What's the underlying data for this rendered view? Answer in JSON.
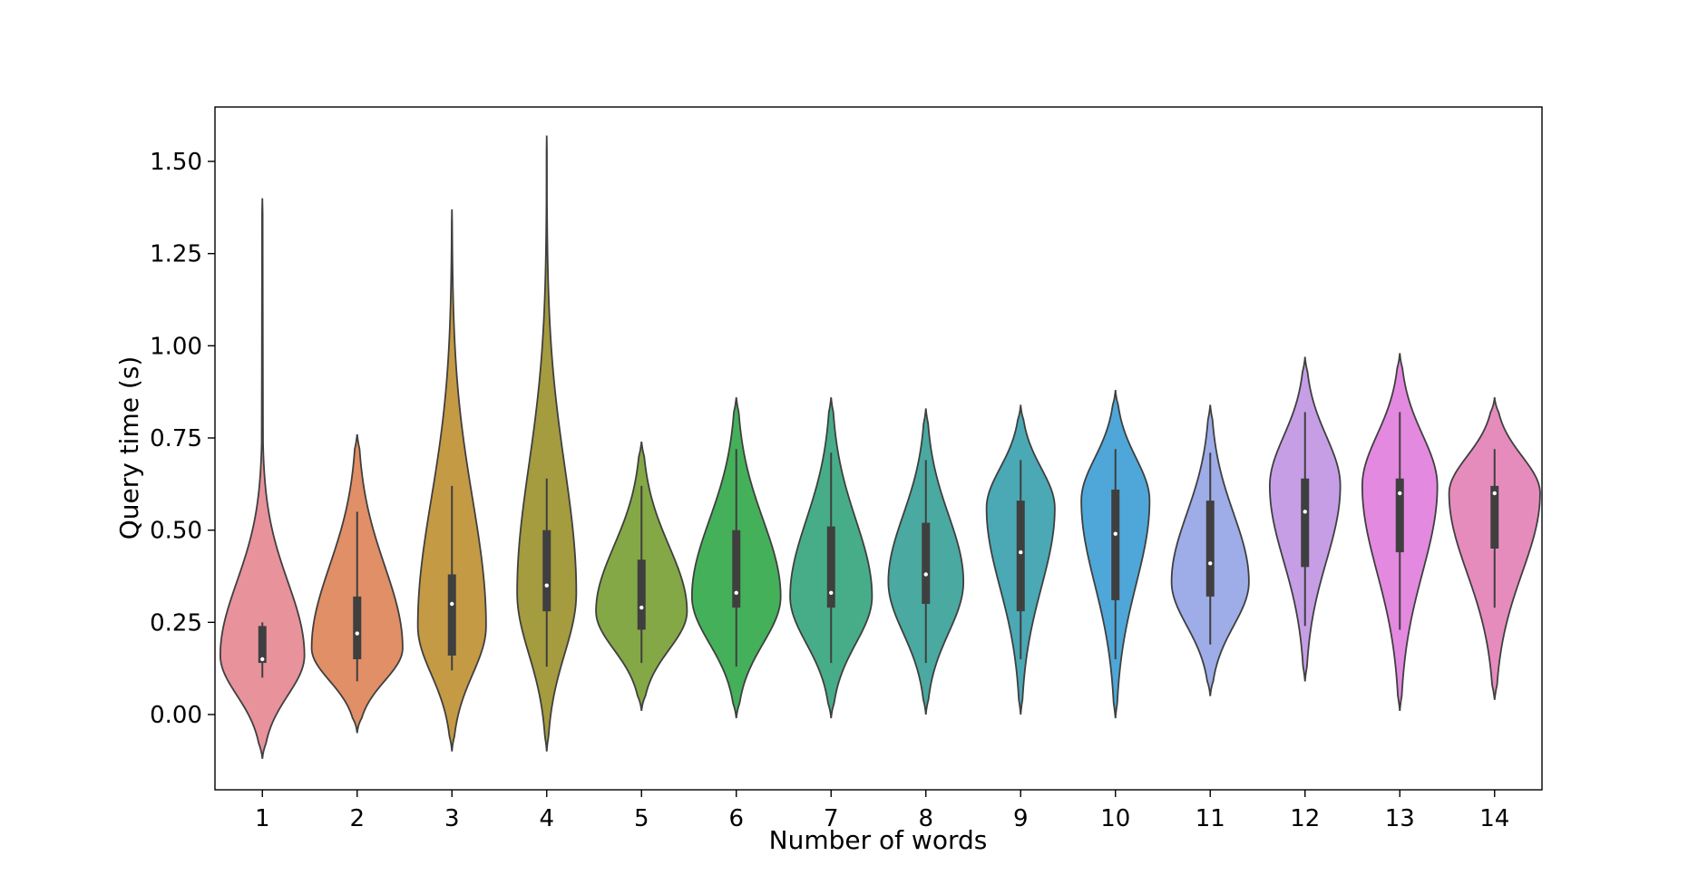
{
  "chart_data": {
    "type": "violin",
    "xlabel": "Number of words",
    "ylabel": "Query time (s)",
    "categories": [
      "1",
      "2",
      "3",
      "4",
      "5",
      "6",
      "7",
      "8",
      "9",
      "10",
      "11",
      "12",
      "13",
      "14"
    ],
    "yticks": [
      "0.00",
      "0.25",
      "0.50",
      "0.75",
      "1.00",
      "1.25",
      "1.50"
    ],
    "ylim": [
      -0.2,
      1.65
    ],
    "grid": false,
    "legend": "none",
    "colors": [
      "#e8929c",
      "#e08f66",
      "#c59a45",
      "#a59b3f",
      "#84a846",
      "#45b05a",
      "#47ad89",
      "#4aa9a0",
      "#4aa9b5",
      "#4ea7d8",
      "#9eace8",
      "#c69ee6",
      "#e489e0",
      "#e68cbd"
    ],
    "violins": [
      {
        "category": "1",
        "min": -0.12,
        "max": 1.4,
        "q1": 0.14,
        "median": 0.15,
        "q3": 0.24,
        "whisker_low": 0.1,
        "whisker_high": 0.25,
        "peak": 0.16,
        "peak_width": 0.37
      },
      {
        "category": "2",
        "min": -0.05,
        "max": 0.76,
        "q1": 0.15,
        "median": 0.22,
        "q3": 0.32,
        "whisker_low": 0.09,
        "whisker_high": 0.55,
        "peak": 0.18,
        "peak_width": 0.4
      },
      {
        "category": "3",
        "min": -0.1,
        "max": 1.37,
        "q1": 0.16,
        "median": 0.3,
        "q3": 0.38,
        "whisker_low": 0.12,
        "whisker_high": 0.62,
        "peak": 0.24,
        "peak_width": 0.3
      },
      {
        "category": "4",
        "min": -0.1,
        "max": 1.57,
        "q1": 0.28,
        "median": 0.35,
        "q3": 0.5,
        "whisker_low": 0.13,
        "whisker_high": 0.64,
        "peak": 0.33,
        "peak_width": 0.26
      },
      {
        "category": "5",
        "min": 0.01,
        "max": 0.74,
        "q1": 0.23,
        "median": 0.29,
        "q3": 0.42,
        "whisker_low": 0.14,
        "whisker_high": 0.62,
        "peak": 0.28,
        "peak_width": 0.4
      },
      {
        "category": "6",
        "min": -0.01,
        "max": 0.86,
        "q1": 0.29,
        "median": 0.33,
        "q3": 0.5,
        "whisker_low": 0.13,
        "whisker_high": 0.72,
        "peak": 0.32,
        "peak_width": 0.39
      },
      {
        "category": "7",
        "min": -0.01,
        "max": 0.86,
        "q1": 0.29,
        "median": 0.33,
        "q3": 0.51,
        "whisker_low": 0.14,
        "whisker_high": 0.71,
        "peak": 0.32,
        "peak_width": 0.36
      },
      {
        "category": "8",
        "min": 0.0,
        "max": 0.83,
        "q1": 0.3,
        "median": 0.38,
        "q3": 0.52,
        "whisker_low": 0.14,
        "whisker_high": 0.69,
        "peak": 0.36,
        "peak_width": 0.33
      },
      {
        "category": "9",
        "min": 0.0,
        "max": 0.84,
        "q1": 0.28,
        "median": 0.44,
        "q3": 0.58,
        "whisker_low": 0.15,
        "whisker_high": 0.69,
        "peak": 0.56,
        "peak_width": 0.3
      },
      {
        "category": "10",
        "min": -0.01,
        "max": 0.88,
        "q1": 0.31,
        "median": 0.49,
        "q3": 0.61,
        "whisker_low": 0.15,
        "whisker_high": 0.72,
        "peak": 0.58,
        "peak_width": 0.3
      },
      {
        "category": "11",
        "min": 0.05,
        "max": 0.84,
        "q1": 0.32,
        "median": 0.41,
        "q3": 0.58,
        "whisker_low": 0.19,
        "whisker_high": 0.71,
        "peak": 0.36,
        "peak_width": 0.34
      },
      {
        "category": "12",
        "min": 0.09,
        "max": 0.97,
        "q1": 0.4,
        "median": 0.55,
        "q3": 0.64,
        "whisker_low": 0.24,
        "whisker_high": 0.82,
        "peak": 0.62,
        "peak_width": 0.31
      },
      {
        "category": "13",
        "min": 0.01,
        "max": 0.98,
        "q1": 0.44,
        "median": 0.6,
        "q3": 0.64,
        "whisker_low": 0.23,
        "whisker_high": 0.82,
        "peak": 0.62,
        "peak_width": 0.33
      },
      {
        "category": "14",
        "min": 0.04,
        "max": 0.86,
        "q1": 0.45,
        "median": 0.6,
        "q3": 0.62,
        "whisker_low": 0.29,
        "whisker_high": 0.72,
        "peak": 0.6,
        "peak_width": 0.4
      }
    ]
  }
}
